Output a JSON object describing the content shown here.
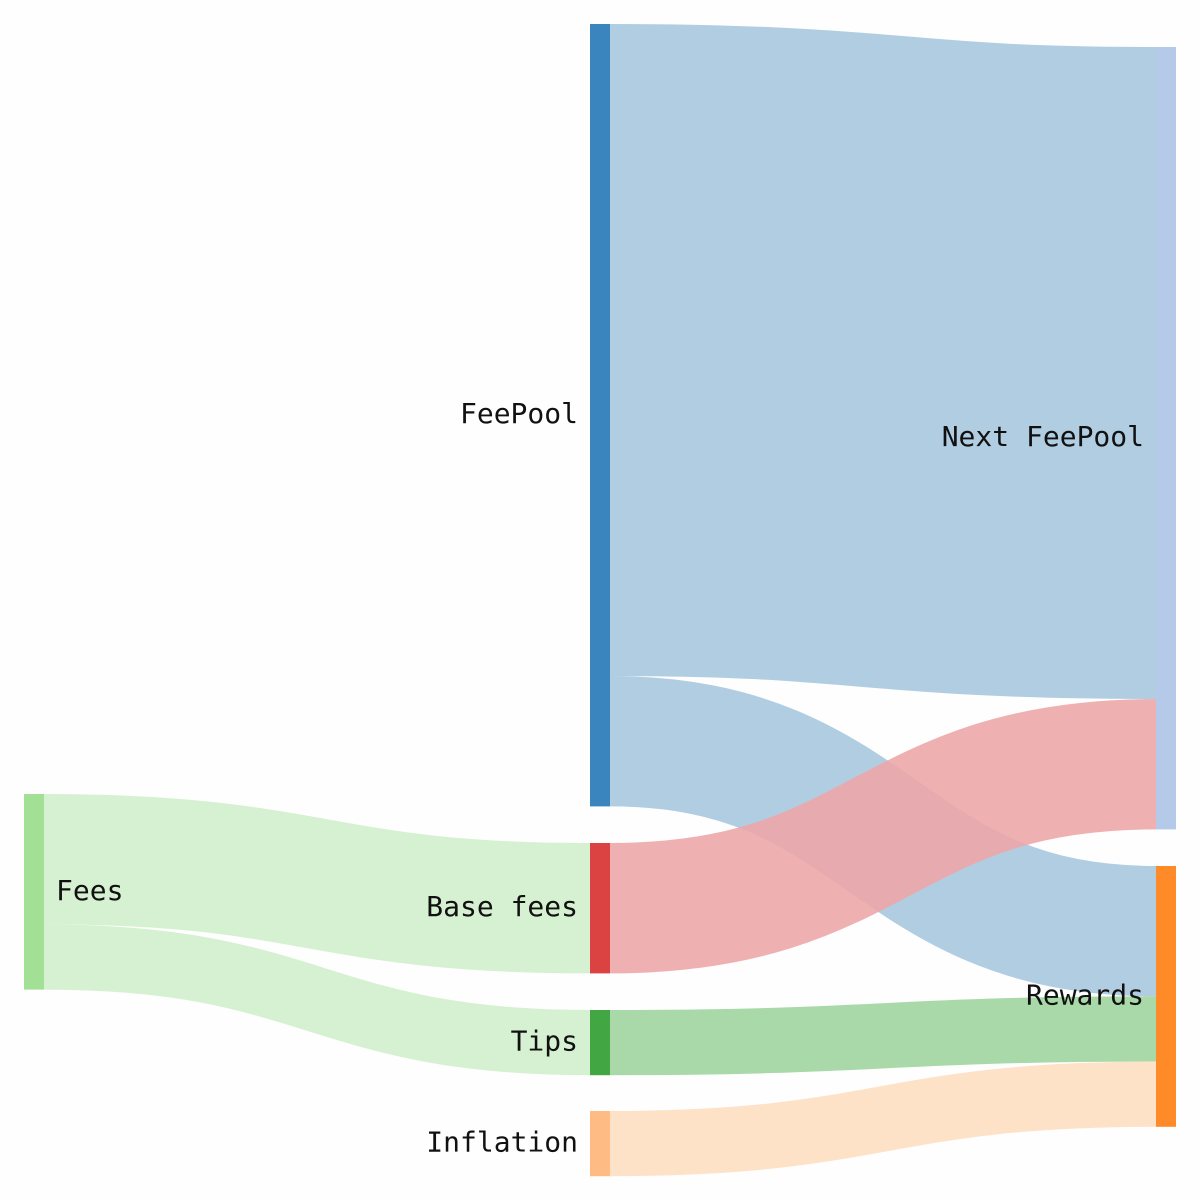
{
  "chart_data": {
    "type": "sankey",
    "title": "",
    "nodes": [
      {
        "id": "fees",
        "label": "Fees",
        "color": "#a1e095"
      },
      {
        "id": "feepool",
        "label": "FeePool",
        "color": "#3a85bd"
      },
      {
        "id": "base_fees",
        "label": "Base fees",
        "color": "#db4343"
      },
      {
        "id": "tips",
        "label": "Tips",
        "color": "#42a642"
      },
      {
        "id": "inflation",
        "label": "Inflation",
        "color": "#febc84"
      },
      {
        "id": "next_feepool",
        "label": "Next FeePool",
        "color": "#b5c9e9"
      },
      {
        "id": "rewards",
        "label": "Rewards",
        "color": "#fe8b28"
      }
    ],
    "links": [
      {
        "source": "fees",
        "target": "base_fees",
        "value": 2,
        "color": "#d6f1d1"
      },
      {
        "source": "fees",
        "target": "tips",
        "value": 1,
        "color": "#d6f1d1"
      },
      {
        "source": "feepool",
        "target": "next_feepool",
        "value": 10,
        "color": "#a7c8df"
      },
      {
        "source": "feepool",
        "target": "rewards",
        "value": 2,
        "color": "#a7c8df"
      },
      {
        "source": "base_fees",
        "target": "next_feepool",
        "value": 2,
        "color": "#eda7aa"
      },
      {
        "source": "tips",
        "target": "rewards",
        "value": 1,
        "color": "#aad9a9"
      },
      {
        "source": "inflation",
        "target": "rewards",
        "value": 1,
        "color": "#fee2c8"
      }
    ]
  }
}
